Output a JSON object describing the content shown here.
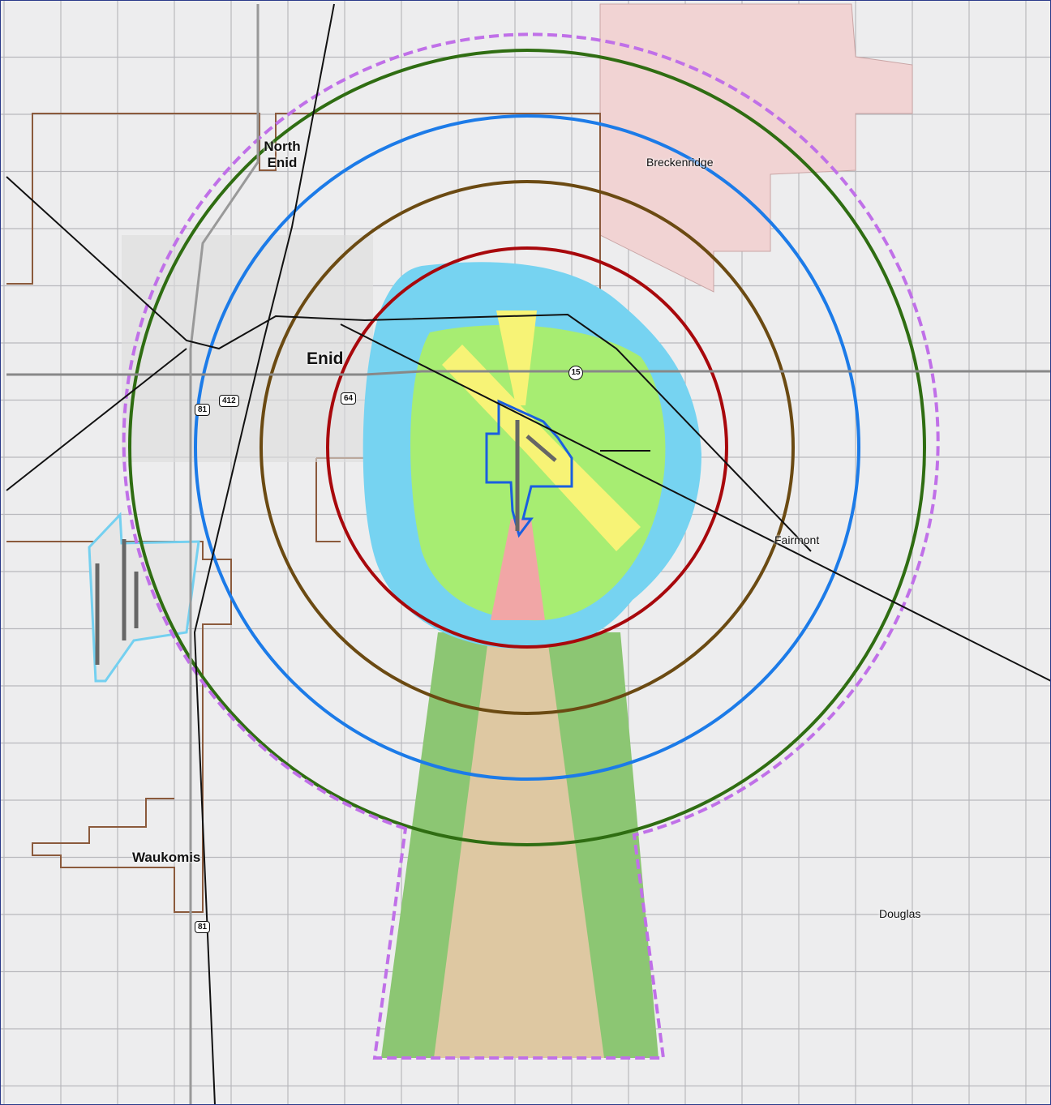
{
  "places": [
    {
      "label": "North Enid"
    },
    {
      "label": "Enid"
    },
    {
      "label": "Breckenridge"
    },
    {
      "label": "Fairmont"
    },
    {
      "label": "Waukomis"
    },
    {
      "label": "Douglas"
    }
  ],
  "route_shields": [
    "81",
    "412",
    "64",
    "15",
    "81"
  ]
}
